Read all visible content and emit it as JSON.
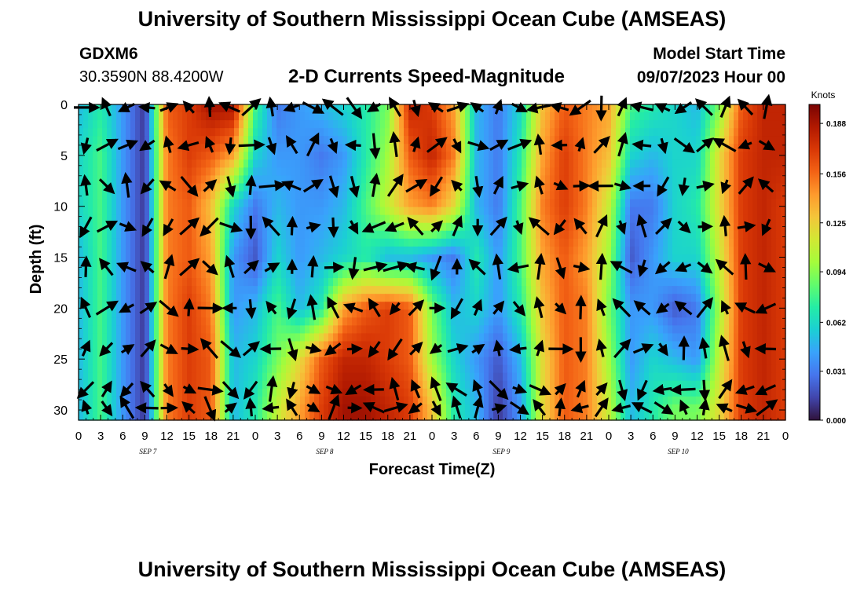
{
  "header": {
    "title": "University of Southern Mississippi Ocean Cube (AMSEAS)",
    "station": "GDXM6",
    "location": "30.3590N  88.4200W",
    "product": "2-D Currents Speed-Magnitude",
    "model_start_label": "Model Start Time",
    "model_start_value": "09/07/2023 Hour 00"
  },
  "footer": {
    "title": "University of Southern Mississippi Ocean Cube (AMSEAS)"
  },
  "chart_data": {
    "type": "heatmap",
    "title": "2-D Currents Speed-Magnitude",
    "xlabel": "Forecast Time(Z)",
    "ylabel": "Depth (ft)",
    "x_tick_labels": [
      "0",
      "3",
      "6",
      "9",
      "12",
      "15",
      "18",
      "21",
      "0",
      "3",
      "6",
      "9",
      "12",
      "15",
      "18",
      "21",
      "0",
      "3",
      "6",
      "9",
      "12",
      "15",
      "18",
      "21",
      "0",
      "3",
      "6",
      "9",
      "12",
      "15",
      "18",
      "21",
      "0"
    ],
    "x_range_hours": [
      0,
      96
    ],
    "date_labels": [
      {
        "label": "SEP 7",
        "hour": 9
      },
      {
        "label": "SEP 8",
        "hour": 33
      },
      {
        "label": "SEP 9",
        "hour": 57
      },
      {
        "label": "SEP 10",
        "hour": 81
      }
    ],
    "y_ticks": [
      0,
      5,
      10,
      15,
      20,
      25,
      30
    ],
    "ylim": [
      0,
      31
    ],
    "y_inverted": true,
    "colorbar": {
      "unit": "Knots",
      "range": [
        0,
        0.2
      ],
      "ticks": [
        "0.188",
        "0.156",
        "0.125",
        "0.094",
        "0.062",
        "0.031",
        "0.000"
      ],
      "colors": [
        "#30123b",
        "#4145ab",
        "#4675ed",
        "#39a2fc",
        "#1bcfd4",
        "#24eca6",
        "#61fc6c",
        "#a4fc3b",
        "#d1e834",
        "#f3c63a",
        "#fe9b2d",
        "#f36315",
        "#d93806",
        "#b11901",
        "#7a0403"
      ]
    },
    "speed_field": {
      "times": [
        0,
        3,
        6,
        9,
        12,
        15,
        18,
        21,
        24,
        27,
        30,
        33,
        36,
        39,
        42,
        45,
        48,
        51,
        54,
        57,
        60,
        63,
        66,
        69,
        72,
        75,
        78,
        81,
        84,
        87,
        90,
        93,
        96
      ],
      "depths": [
        0,
        5,
        10,
        15,
        20,
        25,
        30
      ],
      "grid": [
        [
          0.05,
          0.07,
          0.04,
          0.01,
          0.16,
          0.17,
          0.19,
          0.19,
          0.08,
          0.03,
          0.04,
          0.05,
          0.06,
          0.07,
          0.09,
          0.18,
          0.17,
          0.14,
          0.05,
          0.03,
          0.06,
          0.13,
          0.16,
          0.15,
          0.14,
          0.08,
          0.07,
          0.06,
          0.05,
          0.09,
          0.16,
          0.18,
          0.18
        ],
        [
          0.06,
          0.08,
          0.04,
          0.01,
          0.15,
          0.17,
          0.16,
          0.14,
          0.06,
          0.04,
          0.04,
          0.03,
          0.04,
          0.07,
          0.1,
          0.16,
          0.18,
          0.15,
          0.05,
          0.03,
          0.07,
          0.14,
          0.17,
          0.15,
          0.13,
          0.06,
          0.05,
          0.06,
          0.06,
          0.12,
          0.17,
          0.18,
          0.18
        ],
        [
          0.06,
          0.08,
          0.04,
          0.01,
          0.15,
          0.16,
          0.13,
          0.06,
          0.03,
          0.05,
          0.04,
          0.04,
          0.05,
          0.08,
          0.11,
          0.14,
          0.15,
          0.12,
          0.05,
          0.03,
          0.08,
          0.15,
          0.17,
          0.15,
          0.11,
          0.03,
          0.03,
          0.06,
          0.07,
          0.12,
          0.17,
          0.18,
          0.17
        ],
        [
          0.05,
          0.08,
          0.04,
          0.01,
          0.15,
          0.16,
          0.14,
          0.04,
          0.02,
          0.06,
          0.04,
          0.05,
          0.06,
          0.07,
          0.05,
          0.05,
          0.04,
          0.03,
          0.07,
          0.04,
          0.08,
          0.14,
          0.16,
          0.14,
          0.1,
          0.02,
          0.04,
          0.06,
          0.06,
          0.11,
          0.17,
          0.18,
          0.17
        ],
        [
          0.05,
          0.08,
          0.04,
          0.01,
          0.15,
          0.17,
          0.15,
          0.04,
          0.05,
          0.08,
          0.05,
          0.07,
          0.14,
          0.16,
          0.17,
          0.16,
          0.09,
          0.05,
          0.06,
          0.04,
          0.07,
          0.13,
          0.16,
          0.15,
          0.09,
          0.04,
          0.04,
          0.02,
          0.03,
          0.1,
          0.17,
          0.18,
          0.17
        ],
        [
          0.05,
          0.08,
          0.04,
          0.01,
          0.15,
          0.17,
          0.16,
          0.05,
          0.06,
          0.09,
          0.12,
          0.16,
          0.18,
          0.18,
          0.17,
          0.16,
          0.1,
          0.06,
          0.04,
          0.02,
          0.05,
          0.12,
          0.16,
          0.15,
          0.1,
          0.04,
          0.06,
          0.05,
          0.04,
          0.11,
          0.17,
          0.18,
          0.17
        ],
        [
          0.05,
          0.08,
          0.04,
          0.01,
          0.15,
          0.17,
          0.16,
          0.05,
          0.07,
          0.11,
          0.14,
          0.17,
          0.19,
          0.19,
          0.18,
          0.17,
          0.13,
          0.07,
          0.05,
          0.01,
          0.04,
          0.12,
          0.16,
          0.15,
          0.11,
          0.05,
          0.07,
          0.09,
          0.09,
          0.12,
          0.17,
          0.18,
          0.17
        ]
      ]
    },
    "vectors": {
      "depths": [
        0.3,
        4,
        8,
        12,
        16,
        20,
        24,
        28,
        29.8
      ],
      "count": 312
    }
  }
}
